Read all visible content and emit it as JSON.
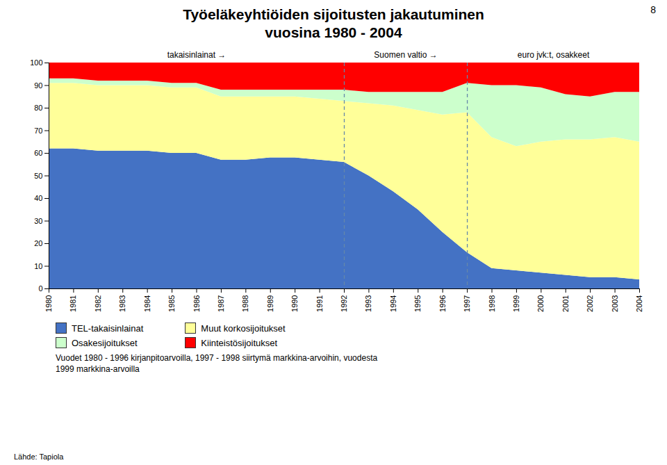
{
  "chart_data": {
    "type": "area",
    "title": "Työeläkeyhtiöiden sijoitusten jakautuminen",
    "subtitle": "vuosina 1980 - 2004",
    "stacked": true,
    "x": [
      1980,
      1981,
      1982,
      1983,
      1984,
      1985,
      1986,
      1987,
      1988,
      1989,
      1990,
      1991,
      1992,
      1993,
      1994,
      1995,
      1996,
      1997,
      1998,
      1999,
      2000,
      2001,
      2002,
      2003,
      2004
    ],
    "series": [
      {
        "name": "TEL-takaisinlainat",
        "color": "#4472C4",
        "values": [
          62,
          62,
          61,
          61,
          61,
          60,
          60,
          57,
          57,
          58,
          58,
          57,
          56,
          50,
          43,
          35,
          25,
          16,
          9,
          8,
          7,
          6,
          5,
          5,
          4
        ]
      },
      {
        "name": "Muut korkosijoitukset",
        "color": "#FFFF99",
        "values": [
          29,
          29,
          29,
          29,
          29,
          29,
          29,
          28,
          28,
          27,
          27,
          27,
          27,
          32,
          38,
          44,
          52,
          62,
          58,
          55,
          58,
          60,
          61,
          62,
          61
        ]
      },
      {
        "name": "Osakesijoitukset",
        "color": "#CCFFCC",
        "values": [
          2,
          2,
          2,
          2,
          2,
          2,
          2,
          3,
          3,
          3,
          3,
          4,
          5,
          5,
          6,
          8,
          10,
          13,
          23,
          27,
          24,
          20,
          19,
          20,
          22
        ]
      },
      {
        "name": "Kiinteistösijoitukset",
        "color": "#FF0000",
        "values": [
          7,
          7,
          8,
          8,
          8,
          9,
          9,
          12,
          12,
          12,
          12,
          12,
          12,
          13,
          13,
          13,
          13,
          9,
          10,
          10,
          11,
          14,
          15,
          13,
          13
        ]
      }
    ],
    "xlim": [
      1980,
      2004
    ],
    "xticks": [
      1980,
      1981,
      1982,
      1983,
      1984,
      1985,
      1986,
      1987,
      1988,
      1989,
      1990,
      1991,
      1992,
      1993,
      1994,
      1995,
      1996,
      1997,
      1998,
      1999,
      2000,
      2001,
      2002,
      2003,
      2004
    ],
    "ylim": [
      0,
      100
    ],
    "yticks": [
      0,
      10,
      20,
      30,
      40,
      50,
      60,
      70,
      80,
      90,
      100
    ],
    "grid": false,
    "legend": "lower left",
    "vlines": [
      1992,
      1997
    ],
    "annotations": [
      "takaisinlainat →",
      "Suomen valtio →",
      "euro jvk:t, osakkeet"
    ],
    "footer": "Vuodet 1980 - 1996 kirjanpitoarvoilla, 1997 - 1998 siirtymä markkina-arvoihin, vuodesta\n1999 markkina-arvoilla",
    "source": "Lähde: Tapiola",
    "page_number": "8"
  }
}
